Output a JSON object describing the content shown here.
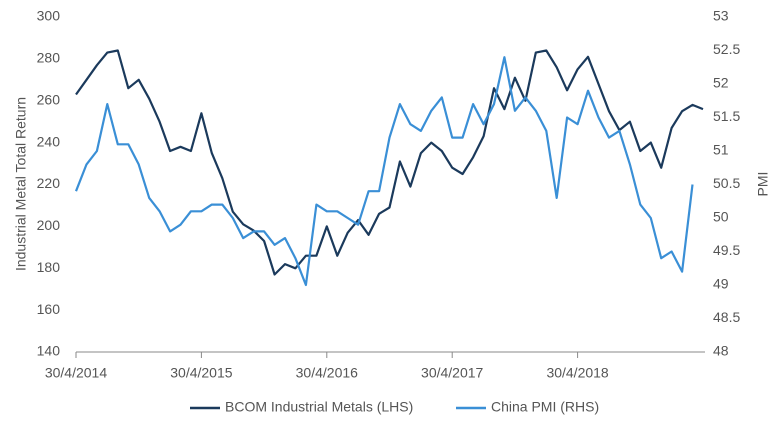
{
  "chart_data": {
    "type": "line",
    "categories": [
      "30/4/2014",
      null,
      null,
      null,
      null,
      null,
      null,
      null,
      null,
      null,
      null,
      null,
      "30/4/2015",
      null,
      null,
      null,
      null,
      null,
      null,
      null,
      null,
      null,
      null,
      null,
      "30/4/2016",
      null,
      null,
      null,
      null,
      null,
      null,
      null,
      null,
      null,
      null,
      null,
      "30/4/2017",
      null,
      null,
      null,
      null,
      null,
      null,
      null,
      null,
      null,
      null,
      null,
      "30/4/2018",
      null,
      null,
      null,
      null,
      null,
      null,
      null,
      null,
      null,
      null,
      null,
      null
    ],
    "ylabel": "Industrial Metal Total Return",
    "y2label": "PMI",
    "ylim": [
      140,
      300
    ],
    "yticks": [
      140,
      160,
      180,
      200,
      220,
      240,
      260,
      280,
      300
    ],
    "y2lim": [
      48,
      53
    ],
    "y2ticks": [
      48,
      48.5,
      49,
      49.5,
      50,
      50.5,
      51,
      51.5,
      52,
      52.5,
      53
    ],
    "legend": "bottom",
    "series": [
      {
        "name": "BCOM Industrial Metals (LHS)",
        "color": "#1b3a5c",
        "axis": "y",
        "values": [
          263,
          270,
          277,
          283,
          284,
          266,
          270,
          261,
          250,
          236,
          238,
          236,
          254,
          235,
          223,
          207,
          201,
          198,
          193,
          177,
          182,
          180,
          186,
          186,
          200,
          186,
          197,
          203,
          196,
          206,
          209,
          231,
          219,
          235,
          240,
          236,
          228,
          225,
          233,
          243,
          266,
          256,
          271,
          260,
          283,
          284,
          276,
          265,
          275,
          281,
          268,
          255,
          246,
          250,
          236,
          240,
          228,
          247,
          255,
          258,
          256
        ]
      },
      {
        "name": "China PMI (RHS)",
        "color": "#3a8fd6",
        "axis": "y2",
        "values": [
          50.4,
          50.8,
          51.0,
          51.7,
          51.1,
          51.1,
          50.8,
          50.3,
          50.1,
          49.8,
          49.9,
          50.1,
          50.1,
          50.2,
          50.2,
          50.0,
          49.7,
          49.8,
          49.8,
          49.6,
          49.7,
          49.4,
          49.0,
          50.2,
          50.1,
          50.1,
          50.0,
          49.9,
          50.4,
          50.4,
          51.2,
          51.7,
          51.4,
          51.3,
          51.6,
          51.8,
          51.2,
          51.2,
          51.7,
          51.4,
          51.7,
          52.4,
          51.6,
          51.8,
          51.6,
          51.3,
          50.3,
          51.5,
          51.4,
          51.9,
          51.5,
          51.2,
          51.3,
          50.8,
          50.2,
          50.0,
          49.4,
          49.5,
          49.2,
          50.5,
          null
        ]
      }
    ]
  }
}
